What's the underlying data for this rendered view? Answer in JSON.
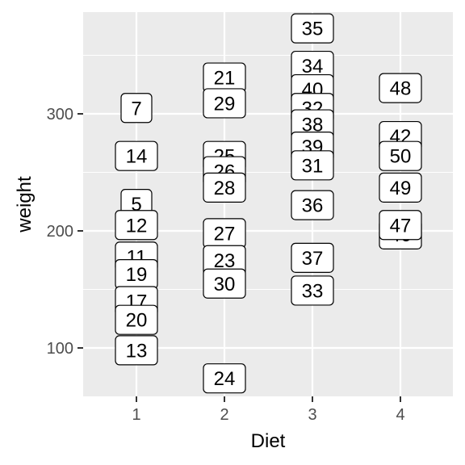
{
  "chart_data": {
    "type": "scatter",
    "xlabel": "Diet",
    "ylabel": "weight",
    "x_categories": [
      "1",
      "2",
      "3",
      "4"
    ],
    "y_ticks": [
      100,
      200,
      300
    ],
    "ylim": [
      55,
      380
    ],
    "grid": true,
    "points": [
      {
        "label": "7",
        "diet": 1,
        "weight": 305
      },
      {
        "label": "14",
        "diet": 1,
        "weight": 264
      },
      {
        "label": "5",
        "diet": 1,
        "weight": 223
      },
      {
        "label": "12",
        "diet": 1,
        "weight": 205
      },
      {
        "label": "11",
        "diet": 1,
        "weight": 178
      },
      {
        "label": "19",
        "diet": 1,
        "weight": 163
      },
      {
        "label": "17",
        "diet": 1,
        "weight": 140
      },
      {
        "label": "20",
        "diet": 1,
        "weight": 124
      },
      {
        "label": "13",
        "diet": 1,
        "weight": 98
      },
      {
        "label": "21",
        "diet": 2,
        "weight": 331
      },
      {
        "label": "29",
        "diet": 2,
        "weight": 309
      },
      {
        "label": "25",
        "diet": 2,
        "weight": 264
      },
      {
        "label": "26",
        "diet": 2,
        "weight": 251
      },
      {
        "label": "28",
        "diet": 2,
        "weight": 237
      },
      {
        "label": "27",
        "diet": 2,
        "weight": 198
      },
      {
        "label": "23",
        "diet": 2,
        "weight": 175
      },
      {
        "label": "30",
        "diet": 2,
        "weight": 155
      },
      {
        "label": "24",
        "diet": 2,
        "weight": 74
      },
      {
        "label": "35",
        "diet": 3,
        "weight": 373
      },
      {
        "label": "34",
        "diet": 3,
        "weight": 341
      },
      {
        "label": "40",
        "diet": 3,
        "weight": 321
      },
      {
        "label": "32",
        "diet": 3,
        "weight": 305
      },
      {
        "label": "38",
        "diet": 3,
        "weight": 291
      },
      {
        "label": "39",
        "diet": 3,
        "weight": 272
      },
      {
        "label": "31",
        "diet": 3,
        "weight": 256
      },
      {
        "label": "36",
        "diet": 3,
        "weight": 222
      },
      {
        "label": "37",
        "diet": 3,
        "weight": 177
      },
      {
        "label": "33",
        "diet": 3,
        "weight": 149
      },
      {
        "label": "48",
        "diet": 4,
        "weight": 322
      },
      {
        "label": "42",
        "diet": 4,
        "weight": 281
      },
      {
        "label": "50",
        "diet": 4,
        "weight": 264
      },
      {
        "label": "49",
        "diet": 4,
        "weight": 237
      },
      {
        "label": "46",
        "diet": 4,
        "weight": 197
      },
      {
        "label": "47",
        "diet": 4,
        "weight": 205
      }
    ]
  }
}
